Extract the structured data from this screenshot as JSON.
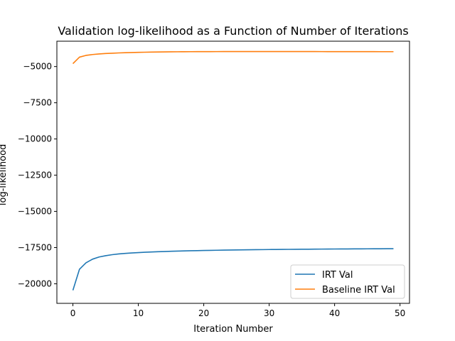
{
  "chart_data": {
    "type": "line",
    "title": "Validation log-likelihood as a Function of Number of Iterations",
    "xlabel": "Iteration Number",
    "ylabel": "log-likelihood",
    "xlim": [
      -2.45,
      51.45
    ],
    "ylim": [
      -21350,
      -3250
    ],
    "x_ticks": [
      0,
      10,
      20,
      30,
      40,
      50
    ],
    "y_ticks": [
      -20000,
      -17500,
      -15000,
      -12500,
      -10000,
      -7500,
      -5000
    ],
    "grid": false,
    "legend_position": "lower-right",
    "series": [
      {
        "name": "IRT Val",
        "color": "#1f77b4",
        "x": [
          0,
          1,
          2,
          3,
          4,
          5,
          6,
          7,
          8,
          9,
          10,
          11,
          12,
          13,
          14,
          15,
          16,
          17,
          18,
          19,
          20,
          21,
          22,
          23,
          24,
          25,
          26,
          27,
          28,
          29,
          30,
          31,
          32,
          33,
          34,
          35,
          36,
          37,
          38,
          39,
          40,
          41,
          42,
          43,
          44,
          45,
          46,
          47,
          48,
          49
        ],
        "y": [
          -20450,
          -19000,
          -18550,
          -18300,
          -18150,
          -18060,
          -17990,
          -17940,
          -17900,
          -17870,
          -17845,
          -17823,
          -17803,
          -17785,
          -17770,
          -17755,
          -17742,
          -17730,
          -17719,
          -17709,
          -17700,
          -17691,
          -17683,
          -17676,
          -17669,
          -17662,
          -17656,
          -17650,
          -17645,
          -17640,
          -17635,
          -17630,
          -17626,
          -17622,
          -17618,
          -17614,
          -17611,
          -17607,
          -17604,
          -17601,
          -17598,
          -17595,
          -17592,
          -17590,
          -17587,
          -17585,
          -17582,
          -17580,
          -17578,
          -17575
        ]
      },
      {
        "name": "Baseline IRT Val",
        "color": "#ff7f0e",
        "x": [
          0,
          1,
          2,
          3,
          4,
          5,
          6,
          7,
          8,
          9,
          10,
          11,
          12,
          13,
          14,
          15,
          16,
          17,
          18,
          19,
          20,
          21,
          22,
          23,
          24,
          25,
          26,
          27,
          28,
          29,
          30,
          31,
          32,
          33,
          34,
          35,
          36,
          37,
          38,
          39,
          40,
          41,
          42,
          43,
          44,
          45,
          46,
          47,
          48,
          49
        ],
        "y": [
          -4800,
          -4350,
          -4230,
          -4170,
          -4130,
          -4100,
          -4080,
          -4060,
          -4045,
          -4030,
          -4020,
          -4010,
          -4002,
          -3995,
          -3990,
          -3985,
          -3980,
          -3977,
          -3974,
          -3972,
          -3970,
          -3968,
          -3967,
          -3966,
          -3965,
          -3964,
          -3963,
          -3963,
          -3963,
          -3963,
          -3963,
          -3963,
          -3964,
          -3964,
          -3965,
          -3965,
          -3966,
          -3966,
          -3967,
          -3968,
          -3968,
          -3969,
          -3970,
          -3970,
          -3971,
          -3972,
          -3972,
          -3973,
          -3974,
          -3974
        ]
      }
    ]
  }
}
